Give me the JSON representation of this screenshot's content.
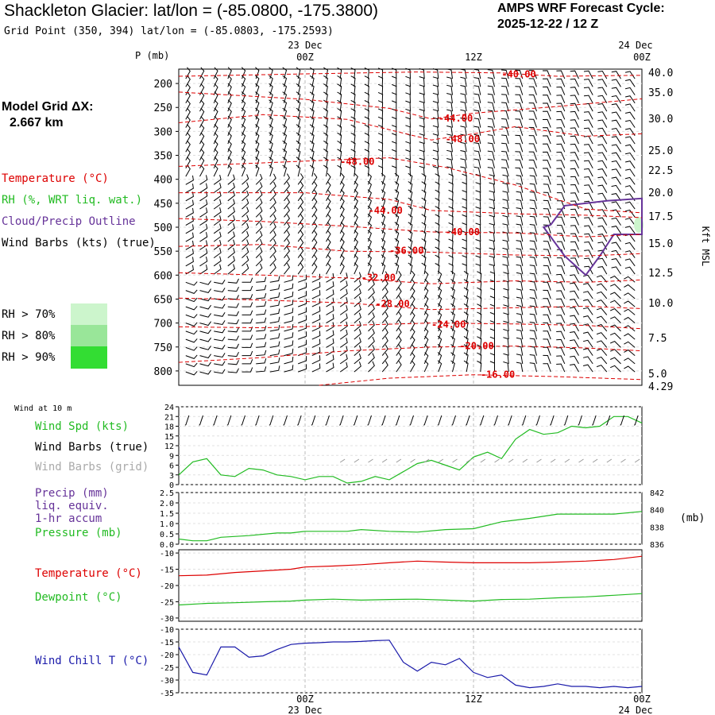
{
  "header": {
    "title": "Shackleton Glacier:  lat/lon = (-85.0800, -175.3800)",
    "subtitle": "Grid Point (350, 394) lat/lon = (-85.0803, -175.2593)",
    "cycle_line1": "AMPS WRF Forecast Cycle:",
    "cycle_line2": "2025-12-22 / 12  Z",
    "grid_label": "Model Grid ΔX:",
    "grid_value": "2.667 km"
  },
  "legend": {
    "temperature": "Temperature (°C)",
    "rh": "RH (%, WRT liq. wat.)",
    "cloud": "Cloud/Precip Outline",
    "wind": "Wind Barbs (kts) (true)",
    "rh70": "RH > 70%",
    "rh80": "RH > 80%",
    "rh90": "RH > 90%",
    "colors": {
      "rh70": "#ccf5cc",
      "rh80": "#99e699",
      "rh90": "#33dd33",
      "temp": "#dd0000",
      "rh": "#22bb22",
      "cloud": "#663399",
      "windchill": "#1a1aaa"
    }
  },
  "time_axis": {
    "top_dates": [
      "23 Dec",
      "24 Dec"
    ],
    "ticks": [
      "00Z",
      "12Z",
      "00Z"
    ],
    "bottom_dates": [
      "23 Dec",
      "24 Dec"
    ]
  },
  "chart_data": [
    {
      "type": "contour",
      "name": "upper_air_time_section",
      "ylabel": "P (mb)",
      "pressure_ticks": [
        "200",
        "250",
        "300",
        "350",
        "400",
        "450",
        "500",
        "550",
        "600",
        "650",
        "700",
        "750",
        "800"
      ],
      "ylim_mb": [
        170,
        830
      ],
      "height_axis_label": "Kft MSL",
      "height_ticks": [
        "40.0",
        "35.0",
        "30.0",
        "25.0",
        "22.5",
        "20.0",
        "17.5",
        "15.0",
        "12.5",
        "10.0",
        "7.5",
        "5.0",
        "4.29"
      ],
      "x_range_hours": [
        -9,
        24
      ],
      "temperature_labels": [
        "-40.00",
        "-44.00",
        "-48.00",
        "-48.00",
        "-44.00",
        "-48.00",
        "-40.00",
        "-36.00",
        "-32.00",
        "-28.00",
        "-24.00",
        "-20.00",
        "-16.00"
      ],
      "temperature_contours": [
        {
          "label": "-40.00",
          "points": [
            [
              -9,
              185
            ],
            [
              0,
              180
            ],
            [
              8,
              176
            ],
            [
              14,
              178
            ],
            [
              18,
              185
            ],
            [
              24,
              183
            ]
          ],
          "label_at": [
            14,
            181
          ]
        },
        {
          "label": "-44.00",
          "points": [
            [
              -9,
              218
            ],
            [
              0,
              233
            ],
            [
              6,
              252
            ],
            [
              9,
              274
            ],
            [
              12,
              262
            ],
            [
              18,
              248
            ],
            [
              24,
              232
            ]
          ],
          "label_at": [
            9.5,
            273
          ]
        },
        {
          "label": "-48.00",
          "points": [
            [
              -9,
              282
            ],
            [
              -3,
              265
            ],
            [
              3,
              275
            ],
            [
              9,
              318
            ],
            [
              12,
              305
            ],
            [
              15,
              290
            ],
            [
              20,
              310
            ],
            [
              24,
              305
            ]
          ],
          "label_at": [
            10,
            316
          ]
        },
        {
          "label": "-48.00",
          "points": [
            [
              -9,
              373
            ],
            [
              0,
              362
            ],
            [
              6,
              355
            ],
            [
              10,
              375
            ],
            [
              15,
              412
            ],
            [
              20,
              462
            ],
            [
              24,
              470
            ]
          ],
          "label_at": [
            2.5,
            363
          ]
        },
        {
          "label": "-44.00",
          "points": [
            [
              -9,
              428
            ],
            [
              0,
              428
            ],
            [
              6,
              442
            ],
            [
              9,
              465
            ],
            [
              15,
              472
            ],
            [
              20,
              475
            ],
            [
              24,
              480
            ]
          ],
          "label_at": [
            4.5,
            465
          ]
        },
        {
          "label": "-40.00",
          "points": [
            [
              -9,
              482
            ],
            [
              -3,
              488
            ],
            [
              3,
              498
            ],
            [
              9,
              510
            ],
            [
              15,
              512
            ],
            [
              20,
              520
            ],
            [
              24,
              515
            ]
          ],
          "label_at": [
            10,
            510
          ]
        },
        {
          "label": "-36.00",
          "points": [
            [
              -9,
              540
            ],
            [
              -3,
              536
            ],
            [
              3,
              550
            ],
            [
              9,
              552
            ],
            [
              15,
              558
            ],
            [
              20,
              560
            ],
            [
              24,
              555
            ]
          ],
          "label_at": [
            6,
            549
          ]
        },
        {
          "label": "-32.00",
          "points": [
            [
              -9,
              595
            ],
            [
              -3,
              600
            ],
            [
              3,
              606
            ],
            [
              9,
              618
            ],
            [
              15,
              612
            ],
            [
              20,
              615
            ],
            [
              24,
              610
            ]
          ],
          "label_at": [
            4,
            605
          ]
        },
        {
          "label": "-28.00",
          "points": [
            [
              -9,
              648
            ],
            [
              -3,
              652
            ],
            [
              3,
              658
            ],
            [
              9,
              672
            ],
            [
              15,
              668
            ],
            [
              20,
              665
            ],
            [
              24,
              670
            ]
          ],
          "label_at": [
            5,
            660
          ]
        },
        {
          "label": "-24.00",
          "points": [
            [
              -9,
              708
            ],
            [
              -3,
              710
            ],
            [
              3,
              705
            ],
            [
              9,
              700
            ],
            [
              15,
              702
            ],
            [
              20,
              705
            ],
            [
              24,
              712
            ]
          ],
          "label_at": [
            9,
            703
          ]
        },
        {
          "label": "-20.00",
          "points": [
            [
              -9,
              782
            ],
            [
              -3,
              772
            ],
            [
              3,
              758
            ],
            [
              9,
              750
            ],
            [
              15,
              748
            ],
            [
              20,
              752
            ],
            [
              24,
              758
            ]
          ],
          "label_at": [
            11,
            748
          ]
        },
        {
          "label": "-16.00",
          "points": [
            [
              1,
              830
            ],
            [
              6,
              815
            ],
            [
              12,
              808
            ],
            [
              18,
              812
            ],
            [
              24,
              818
            ]
          ],
          "label_at": [
            12.5,
            808
          ]
        }
      ],
      "cloud_outline": [
        [
          17.5,
          495
        ],
        [
          18.5,
          455
        ],
        [
          21.5,
          445
        ],
        [
          24,
          440
        ],
        [
          24,
          515
        ],
        [
          22,
          515
        ],
        [
          21,
          560
        ],
        [
          20,
          600
        ],
        [
          18.5,
          560
        ],
        [
          17,
          500
        ],
        [
          17.5,
          495
        ]
      ],
      "rh_shaded": [
        {
          "threshold": "> 70%",
          "x": 24,
          "p": 495
        }
      ]
    },
    {
      "type": "line",
      "name": "wind_at_10m",
      "title": "Wind at 10 m",
      "legend": [
        "Wind Spd (kts)",
        "Wind Barbs (true)",
        "Wind Barbs (grid)"
      ],
      "y_ticks": [
        "24",
        "21",
        "18",
        "15",
        "12",
        "9",
        "6",
        "3",
        "0"
      ],
      "ylim": [
        0,
        24
      ],
      "x": [
        -9,
        -8,
        -7,
        -6,
        -5,
        -4,
        -3,
        -2,
        -1,
        0,
        1,
        2,
        3,
        4,
        5,
        6,
        7,
        8,
        9,
        10,
        11,
        12,
        13,
        14,
        15,
        16,
        17,
        18,
        19,
        20,
        21,
        22,
        23,
        24
      ],
      "series": [
        {
          "name": "Wind Spd (kts)",
          "values": [
            3,
            7,
            8,
            3,
            2.5,
            5,
            4.5,
            3,
            2.5,
            1.5,
            2.5,
            2.5,
            0.5,
            1,
            2.5,
            1.5,
            4,
            6.5,
            7.5,
            6,
            4.5,
            8.5,
            10,
            8,
            14,
            17,
            15.5,
            16,
            18,
            17.5,
            18,
            21,
            21,
            19
          ]
        }
      ]
    },
    {
      "type": "line",
      "name": "precip_pressure",
      "legend": [
        "Precip (mm)",
        "liq. equiv.",
        "1-hr accum",
        "Pressure (mb)"
      ],
      "y_ticks_left": [
        "2.5",
        "2.0",
        "1.5",
        "1.0",
        "0.5",
        "0.0"
      ],
      "y_ticks_right": [
        "842",
        "840",
        "838",
        "836"
      ],
      "ylim_left": [
        0,
        2.5
      ],
      "ylim_right": [
        836,
        842
      ],
      "right_unit": "(mb)",
      "x": [
        -9,
        -8,
        -7,
        -6,
        -4,
        -2,
        -1,
        0,
        2,
        3,
        4,
        6,
        8,
        10,
        12,
        14,
        16,
        18,
        20,
        22,
        24
      ],
      "series": [
        {
          "name": "Pressure (mb)",
          "values": [
            836.6,
            836.4,
            836.4,
            836.8,
            837.0,
            837.3,
            837.3,
            837.5,
            837.5,
            837.5,
            837.7,
            837.5,
            837.4,
            837.7,
            837.8,
            838.6,
            839.0,
            839.5,
            839.5,
            839.5,
            839.8
          ]
        },
        {
          "name": "Precip (mm)",
          "values": [
            0,
            0,
            0,
            0,
            0,
            0,
            0,
            0,
            0,
            0,
            0,
            0,
            0,
            0,
            0,
            0,
            0,
            0,
            0,
            0,
            0
          ]
        }
      ]
    },
    {
      "type": "line",
      "name": "temperature_dewpoint",
      "legend": [
        "Temperature (°C)",
        "Dewpoint (°C)"
      ],
      "y_ticks": [
        "-10",
        "-15",
        "-20",
        "-25",
        "-30"
      ],
      "ylim": [
        -31,
        -9
      ],
      "x": [
        -9,
        -7,
        -5,
        -3,
        -1,
        0,
        2,
        4,
        6,
        8,
        10,
        12,
        14,
        16,
        18,
        20,
        22,
        24
      ],
      "series": [
        {
          "name": "Temperature (°C)",
          "values": [
            -17,
            -16.8,
            -16,
            -15.5,
            -15,
            -14.3,
            -14,
            -13.6,
            -13,
            -12.5,
            -12.8,
            -13,
            -13,
            -13,
            -12.8,
            -12.5,
            -12,
            -11
          ]
        },
        {
          "name": "Dewpoint (°C)",
          "values": [
            -26,
            -25.5,
            -25.3,
            -25,
            -24.8,
            -24.5,
            -24.2,
            -24.5,
            -24.3,
            -24.2,
            -24.5,
            -24.8,
            -24.3,
            -24.2,
            -23.8,
            -23.5,
            -23,
            -22.5
          ]
        }
      ]
    },
    {
      "type": "line",
      "name": "wind_chill",
      "legend": [
        "Wind Chill T (°C)"
      ],
      "y_ticks": [
        "-10",
        "-15",
        "-20",
        "-25",
        "-30",
        "-35"
      ],
      "ylim": [
        -35,
        -10
      ],
      "x": [
        -9,
        -8,
        -7,
        -6,
        -5,
        -4,
        -3,
        -2,
        -1,
        0,
        1,
        2,
        3,
        4,
        5,
        6,
        7,
        8,
        9,
        10,
        11,
        12,
        13,
        14,
        15,
        16,
        17,
        18,
        19,
        20,
        21,
        22,
        23,
        24
      ],
      "series": [
        {
          "name": "Wind Chill T (°C)",
          "values": [
            -17,
            -27,
            -28,
            -17,
            -17,
            -21,
            -20.5,
            -18,
            -16,
            -15.5,
            -15.3,
            -15,
            -15,
            -14.8,
            -14.5,
            -14.3,
            -23,
            -26.5,
            -23,
            -24,
            -21.5,
            -27,
            -29,
            -28,
            -32,
            -33,
            -32.5,
            -31.5,
            -32.5,
            -32.5,
            -33,
            -32.5,
            -33,
            -32.5
          ]
        }
      ]
    }
  ]
}
